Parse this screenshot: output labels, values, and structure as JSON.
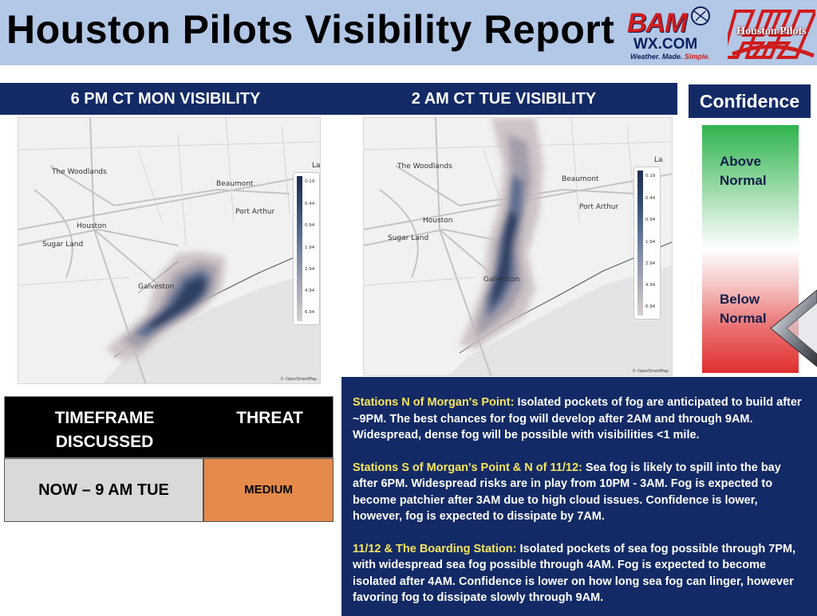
{
  "header": {
    "title": "Houston Pilots Visibility Report",
    "bam_logo": {
      "main": "BAM",
      "sub": "WX.COM",
      "tagline_a": "Weather.",
      "tagline_b": "Made.",
      "tagline_c": "Simple."
    },
    "hp_logo": {
      "text": "Houston Pilots"
    }
  },
  "panels": {
    "left_title": "6 PM CT MON VISIBILITY",
    "right_title": "2 AM CT TUE VISIBILITY"
  },
  "map": {
    "labels": [
      "The Woodlands",
      "Beaumont",
      "Port Arthur",
      "Houston",
      "Sugar Land",
      "Galveston",
      "La"
    ],
    "attribution": "© OpenStreetMap",
    "colorbar_ticks": [
      "0.19",
      "0.44",
      "0.94",
      "1.94",
      "2.94",
      "4.94",
      "6.94"
    ]
  },
  "confidence": {
    "title": "Confidence",
    "above_line1": "Above",
    "above_line2": "Normal",
    "below_line1": "Below",
    "below_line2": "Normal",
    "indicator": "below-normal",
    "colors": {
      "high": "#2fb34f",
      "low": "#e02f2f"
    }
  },
  "threat_table": {
    "col1_header": "TIMEFRAME DISCUSSED",
    "col2_header": "THREAT",
    "timeframe": "NOW – 9 AM TUE",
    "threat": "MEDIUM",
    "threat_color": "#e48a4a"
  },
  "discussion": [
    {
      "heading": "Stations N of Morgan's Point:",
      "text": " Isolated pockets of fog are anticipated to build after ~9PM. The best chances for fog will develop after 2AM and through 9AM. Widespread, dense fog will be possible with visibilities <1 mile."
    },
    {
      "heading": "Stations S of Morgan's Point & N of 11/12:",
      "text": " Sea fog is likely to spill into the bay after 6PM. Widespread risks are in play from 10PM - 3AM. Fog is expected to become patchier after 3AM due to high cloud issues. Confidence is lower, however, fog is expected to dissipate by 7AM."
    },
    {
      "heading": "11/12 & The Boarding Station:",
      "text": " Isolated pockets of sea fog possible through 7PM, with widespread sea fog possible through 4AM. Fog is expected to become isolated after 4AM. Confidence is lower on how long sea fog can linger, however favoring fog to dissipate slowly through 9AM."
    }
  ]
}
